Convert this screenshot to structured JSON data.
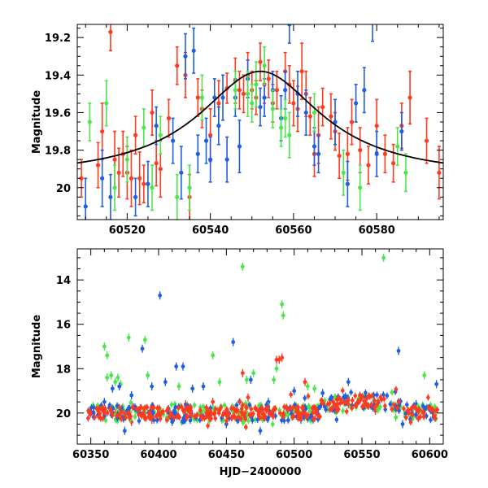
{
  "colors": {
    "red": "#ff3b1f",
    "blue": "#1f5fe0",
    "green": "#4ce64c",
    "model": "#000000"
  },
  "chart_data": [
    {
      "type": "scatter",
      "xlabel": "",
      "ylabel": "Magnitude",
      "xlim": [
        60508,
        60596
      ],
      "ylim": [
        20.17,
        19.13
      ],
      "xticks": [
        60520,
        60540,
        60560,
        60580
      ],
      "yticks": [
        19.2,
        19.4,
        19.6,
        19.8,
        20
      ],
      "ytick_labels": [
        "19.2",
        "19.4",
        "19.6",
        "19.8",
        "20"
      ],
      "model_curve": {
        "type": "lorentzian",
        "peak_x": 60552,
        "peak_mag": 19.38,
        "baseline_mag": 19.95,
        "half_width": 18
      },
      "series": [
        {
          "color": "red",
          "points": [
            [
              60509,
              19.95,
              0.1
            ],
            [
              60513,
              19.88,
              0.12
            ],
            [
              60514,
              19.7,
              0.15
            ],
            [
              60516,
              19.17,
              0.1
            ],
            [
              60517,
              19.85,
              0.15
            ],
            [
              60518,
              19.92,
              0.13
            ],
            [
              60519,
              19.82,
              0.12
            ],
            [
              60520,
              19.92,
              0.14
            ],
            [
              60521,
              19.95,
              0.15
            ],
            [
              60522,
              19.72,
              0.1
            ],
            [
              60523,
              19.95,
              0.14
            ],
            [
              60524,
              19.98,
              0.1
            ],
            [
              60526,
              19.6,
              0.12
            ],
            [
              60527,
              19.87,
              0.12
            ],
            [
              60528,
              19.9,
              0.15
            ],
            [
              60530,
              19.63,
              0.1
            ],
            [
              60532,
              19.35,
              0.1
            ],
            [
              60534,
              19.4,
              0.12
            ],
            [
              60535,
              20.05,
              0.12
            ],
            [
              60537,
              19.52,
              0.1
            ],
            [
              60538,
              19.58,
              0.1
            ],
            [
              60540,
              19.72,
              0.14
            ],
            [
              60542,
              19.55,
              0.12
            ],
            [
              60544,
              19.47,
              0.08
            ],
            [
              60546,
              19.43,
              0.12
            ],
            [
              60547,
              19.48,
              0.1
            ],
            [
              60548,
              19.5,
              0.1
            ],
            [
              60549,
              19.4,
              0.12
            ],
            [
              60550,
              19.48,
              0.1
            ],
            [
              60551,
              19.52,
              0.09
            ],
            [
              60552,
              19.33,
              0.1
            ],
            [
              60553,
              19.45,
              0.1
            ],
            [
              60554,
              19.42,
              0.1
            ],
            [
              60555,
              19.55,
              0.1
            ],
            [
              60556,
              19.48,
              0.1
            ],
            [
              60558,
              19.38,
              0.1
            ],
            [
              60559,
              19.45,
              0.1
            ],
            [
              60560,
              19.55,
              0.12
            ],
            [
              60561,
              19.58,
              0.12
            ],
            [
              60562,
              19.38,
              0.15
            ],
            [
              60563,
              19.5,
              0.12
            ],
            [
              60564,
              19.62,
              0.1
            ],
            [
              60565,
              19.82,
              0.12
            ],
            [
              60566,
              19.72,
              0.15
            ],
            [
              60567,
              19.57,
              0.1
            ],
            [
              60569,
              19.62,
              0.12
            ],
            [
              60570,
              19.7,
              0.1
            ],
            [
              60571,
              19.83,
              0.12
            ],
            [
              60573,
              19.82,
              0.14
            ],
            [
              60574,
              19.65,
              0.12
            ],
            [
              60576,
              19.8,
              0.12
            ],
            [
              60578,
              19.88,
              0.1
            ],
            [
              60580,
              19.67,
              0.14
            ],
            [
              60582,
              19.82,
              0.1
            ],
            [
              60584,
              19.87,
              0.1
            ],
            [
              60586,
              19.67,
              0.12
            ],
            [
              60588,
              19.52,
              0.14
            ],
            [
              60592,
              19.75,
              0.12
            ],
            [
              60595,
              19.92,
              0.14
            ]
          ]
        },
        {
          "color": "blue",
          "points": [
            [
              60510,
              20.1,
              0.15
            ],
            [
              60514,
              19.95,
              0.15
            ],
            [
              60516,
              20.05,
              0.12
            ],
            [
              60522,
              20.05,
              0.1
            ],
            [
              60525,
              19.98,
              0.12
            ],
            [
              60527,
              19.67,
              0.1
            ],
            [
              60531,
              19.75,
              0.12
            ],
            [
              60533,
              19.92,
              0.14
            ],
            [
              60534,
              19.3,
              0.12
            ],
            [
              60536,
              19.27,
              0.12
            ],
            [
              60537,
              19.82,
              0.1
            ],
            [
              60539,
              19.75,
              0.12
            ],
            [
              60540,
              19.85,
              0.12
            ],
            [
              60541,
              19.52,
              0.1
            ],
            [
              60542,
              19.67,
              0.1
            ],
            [
              60543,
              19.52,
              0.12
            ],
            [
              60544,
              19.85,
              0.12
            ],
            [
              60546,
              19.52,
              0.1
            ],
            [
              60547,
              19.78,
              0.14
            ],
            [
              60549,
              19.42,
              0.1
            ],
            [
              60552,
              19.57,
              0.1
            ],
            [
              60553,
              19.52,
              0.1
            ],
            [
              60555,
              19.48,
              0.1
            ],
            [
              60557,
              19.63,
              0.12
            ],
            [
              60558,
              19.48,
              0.1
            ],
            [
              60559,
              19.13,
              0.1
            ],
            [
              60561,
              19.5,
              0.12
            ],
            [
              60563,
              19.6,
              0.12
            ],
            [
              60565,
              19.78,
              0.1
            ],
            [
              60566,
              19.82,
              0.1
            ],
            [
              60570,
              19.65,
              0.12
            ],
            [
              60573,
              19.98,
              0.12
            ],
            [
              60575,
              19.55,
              0.1
            ],
            [
              60577,
              19.48,
              0.12
            ],
            [
              60579,
              19.12,
              0.1
            ],
            [
              60580,
              19.82,
              0.12
            ],
            [
              60586,
              19.7,
              0.1
            ]
          ]
        },
        {
          "color": "green",
          "points": [
            [
              60511,
              19.65,
              0.1
            ],
            [
              60515,
              19.55,
              0.12
            ],
            [
              60517,
              20.0,
              0.12
            ],
            [
              60520,
              19.85,
              0.12
            ],
            [
              60524,
              19.68,
              0.1
            ],
            [
              60526,
              20.0,
              0.12
            ],
            [
              60528,
              19.72,
              0.1
            ],
            [
              60532,
              20.05,
              0.12
            ],
            [
              60535,
              20.0,
              0.12
            ],
            [
              60538,
              19.52,
              0.12
            ],
            [
              60546,
              19.48,
              0.1
            ],
            [
              60549,
              19.5,
              0.12
            ],
            [
              60550,
              19.55,
              0.1
            ],
            [
              60551,
              19.45,
              0.12
            ],
            [
              60553,
              19.35,
              0.1
            ],
            [
              60555,
              19.58,
              0.1
            ],
            [
              60557,
              19.68,
              0.1
            ],
            [
              60558,
              19.63,
              0.1
            ],
            [
              60559,
              19.72,
              0.12
            ],
            [
              60565,
              19.6,
              0.1
            ],
            [
              60572,
              19.92,
              0.12
            ],
            [
              60576,
              20.0,
              0.12
            ],
            [
              60585,
              19.78,
              0.1
            ],
            [
              60587,
              19.92,
              0.1
            ]
          ]
        }
      ]
    },
    {
      "type": "scatter",
      "xlabel": "HJD−2400000",
      "ylabel": "Magnitude",
      "xlim": [
        60340,
        60610
      ],
      "ylim": [
        21.4,
        12.6
      ],
      "xticks": [
        60350,
        60400,
        60450,
        60500,
        60550,
        60600
      ],
      "yticks": [
        14,
        16,
        18,
        20
      ],
      "series": [
        {
          "color": "green",
          "points": [
            [
              60360,
              17.0
            ],
            [
              60362,
              17.4
            ],
            [
              60362,
              18.4
            ],
            [
              60365,
              18.3
            ],
            [
              60368,
              18.6
            ],
            [
              60370,
              18.4
            ],
            [
              60372,
              18.7
            ],
            [
              60378,
              16.6
            ],
            [
              60390,
              16.7
            ],
            [
              60392,
              18.3
            ],
            [
              60415,
              18.8
            ],
            [
              60440,
              17.4
            ],
            [
              60445,
              18.6
            ],
            [
              60462,
              13.4
            ],
            [
              60465,
              18.5
            ],
            [
              60470,
              18.2
            ],
            [
              60485,
              18.5
            ],
            [
              60487,
              18.0
            ],
            [
              60491,
              15.1
            ],
            [
              60492,
              15.6
            ],
            [
              60510,
              18.8
            ],
            [
              60515,
              18.9
            ],
            [
              60566,
              13.0
            ],
            [
              60596,
              18.3
            ],
            [
              60420,
              19.8
            ],
            [
              60430,
              20.0
            ],
            [
              60560,
              19.6
            ],
            [
              60575,
              20.2
            ]
          ]
        },
        {
          "color": "blue",
          "points": [
            [
              60360,
              19.5
            ],
            [
              60366,
              18.9
            ],
            [
              60371,
              18.8
            ],
            [
              60380,
              19.2
            ],
            [
              60388,
              17.1
            ],
            [
              60395,
              18.8
            ],
            [
              60401,
              14.7
            ],
            [
              60405,
              18.6
            ],
            [
              60413,
              17.9
            ],
            [
              60418,
              17.9
            ],
            [
              60425,
              18.9
            ],
            [
              60433,
              18.8
            ],
            [
              60455,
              16.8
            ],
            [
              60468,
              18.5
            ],
            [
              60481,
              19.5
            ],
            [
              60500,
              19.0
            ],
            [
              60521,
              19.1
            ],
            [
              60540,
              18.6
            ],
            [
              60548,
              19.4
            ],
            [
              60577,
              17.2
            ],
            [
              60580,
              20.5
            ],
            [
              60590,
              19.6
            ],
            [
              60605,
              18.7
            ],
            [
              60375,
              20.8
            ],
            [
              60410,
              20.4
            ],
            [
              60450,
              20.5
            ],
            [
              60475,
              20.8
            ],
            [
              60505,
              20.3
            ]
          ]
        },
        {
          "color": "red",
          "points": [
            [
              60352,
              20.0
            ],
            [
              60360,
              20.1
            ],
            [
              60368,
              20.0
            ],
            [
              60380,
              20.4
            ],
            [
              60395,
              20.3
            ],
            [
              60420,
              19.6
            ],
            [
              60440,
              19.5
            ],
            [
              60462,
              18.2
            ],
            [
              60466,
              19.3
            ],
            [
              60487,
              17.6
            ],
            [
              60489,
              17.6
            ],
            [
              60491,
              17.5
            ],
            [
              60508,
              18.6
            ],
            [
              60520,
              19.6
            ],
            [
              60540,
              19.6
            ],
            [
              60560,
              19.9
            ],
            [
              60575,
              19.7
            ],
            [
              60590,
              20.1
            ],
            [
              60604,
              20.1
            ]
          ]
        }
      ]
    }
  ]
}
